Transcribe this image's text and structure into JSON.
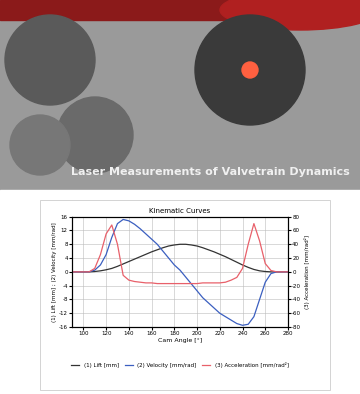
{
  "chart_data": {
    "type": "line",
    "title": "Kinematic Curves",
    "annotations": [
      {
        "text": "Laser Measurements of Valvetrain Dynamics"
      }
    ],
    "x_label": "Cam Angle [°]",
    "y_label": "(1) Lift [mm] ; (2) Velocity [mm/rad]",
    "y2_label": "(3) Acceleration [mm/rad²]",
    "x": [
      90,
      95,
      100,
      105,
      110,
      115,
      120,
      125,
      130,
      135,
      140,
      145,
      150,
      155,
      160,
      165,
      170,
      175,
      180,
      185,
      190,
      195,
      200,
      205,
      210,
      215,
      220,
      225,
      230,
      235,
      240,
      245,
      250,
      255,
      260,
      265,
      270,
      275,
      280
    ],
    "xlim": [
      90,
      280
    ],
    "xticks": [
      100,
      120,
      140,
      160,
      180,
      200,
      220,
      240,
      260,
      280
    ],
    "ylim": [
      -16,
      16
    ],
    "yticks": [
      -16,
      -12,
      -8,
      -4,
      0,
      4,
      8,
      12,
      16
    ],
    "y2lim": [
      -80,
      80
    ],
    "y2ticks": [
      -80,
      -60,
      -40,
      -20,
      0,
      20,
      40,
      60,
      80
    ],
    "grid": true,
    "legend": "lower center",
    "series": [
      {
        "name": "(1) Lift [mm]",
        "color": "#333333",
        "values": [
          0,
          0,
          0,
          0,
          0.1,
          0.3,
          0.6,
          1.0,
          1.6,
          2.3,
          3.0,
          3.7,
          4.4,
          5.1,
          5.8,
          6.4,
          7.0,
          7.5,
          7.8,
          8.0,
          8.0,
          7.8,
          7.5,
          7.0,
          6.4,
          5.8,
          5.1,
          4.4,
          3.6,
          2.8,
          2.0,
          1.3,
          0.7,
          0.3,
          0.1,
          0,
          0,
          0,
          0
        ]
      },
      {
        "name": "(2) Velocity [mm/rad]",
        "color": "#3b5fc0",
        "values": [
          0,
          0,
          0,
          0,
          0.5,
          2,
          5,
          10,
          14,
          15.2,
          14.8,
          13.8,
          12.5,
          11,
          9.5,
          8,
          6,
          4,
          2,
          0.5,
          -1.5,
          -3.5,
          -5.5,
          -7.5,
          -9,
          -10.5,
          -12,
          -13,
          -14,
          -15,
          -15.5,
          -15.2,
          -13,
          -8,
          -3,
          -0.5,
          0,
          0,
          0
        ]
      },
      {
        "name": "(3) Acceleration [mm/rad²]",
        "color": "#e8606a",
        "axis": "y2",
        "values": [
          0,
          0,
          0,
          0,
          5,
          25,
          55,
          68,
          40,
          -5,
          -12,
          -14,
          -15,
          -16,
          -16,
          -17,
          -17,
          -17,
          -17,
          -17,
          -17,
          -17,
          -17,
          -16,
          -16,
          -16,
          -16,
          -15,
          -12,
          -8,
          5,
          40,
          70,
          45,
          12,
          2,
          0,
          0,
          0
        ]
      }
    ]
  }
}
